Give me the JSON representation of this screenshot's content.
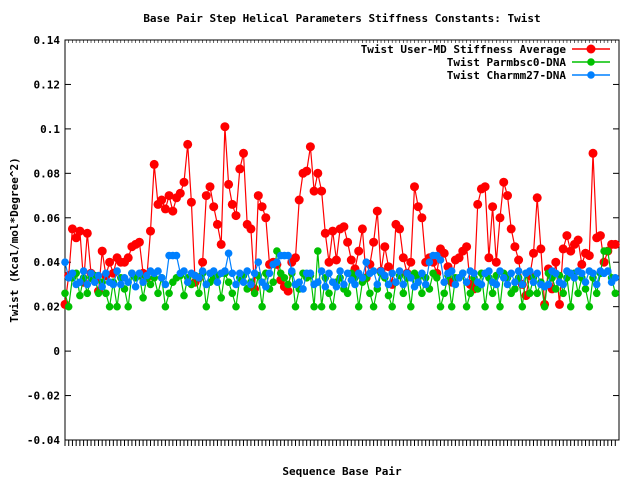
{
  "chart_data": {
    "type": "line",
    "title": "Base Pair Step Helical Parameters Stiffness Constants: Twist",
    "xlabel": "Sequence Base Pair",
    "ylabel": "Twist (Kcal/mol*Degree^2)",
    "ylim": [
      -0.04,
      0.14
    ],
    "yticks": [
      -0.04,
      -0.02,
      0,
      0.02,
      0.04,
      0.06,
      0.08,
      0.1,
      0.12,
      0.14
    ],
    "yticklabels": [
      "-0.04",
      "-0.02",
      "0",
      "0.02",
      "0.04",
      "0.06",
      "0.08",
      "0.1",
      "0.12",
      "0.14"
    ],
    "xlim": [
      0,
      149
    ],
    "grid": false,
    "legend_position": "top-right",
    "series": [
      {
        "name": "Twist User-MD Stiffness Average",
        "color": "#ff0000",
        "values": [
          0.021,
          0.034,
          0.055,
          0.051,
          0.054,
          0.031,
          0.053,
          0.035,
          0.032,
          0.027,
          0.045,
          0.034,
          0.04,
          0.035,
          0.042,
          0.04,
          0.04,
          0.042,
          0.047,
          0.048,
          0.049,
          0.035,
          0.033,
          0.054,
          0.084,
          0.066,
          0.068,
          0.064,
          0.07,
          0.063,
          0.069,
          0.071,
          0.076,
          0.093,
          0.067,
          0.031,
          0.033,
          0.04,
          0.07,
          0.074,
          0.065,
          0.057,
          0.048,
          0.101,
          0.075,
          0.066,
          0.061,
          0.082,
          0.089,
          0.057,
          0.055,
          0.028,
          0.07,
          0.065,
          0.06,
          0.039,
          0.04,
          0.039,
          0.032,
          0.029,
          0.027,
          0.04,
          0.042,
          0.068,
          0.08,
          0.081,
          0.092,
          0.072,
          0.08,
          0.072,
          0.053,
          0.04,
          0.054,
          0.041,
          0.055,
          0.056,
          0.049,
          0.041,
          0.037,
          0.045,
          0.055,
          0.033,
          0.039,
          0.049,
          0.063,
          0.036,
          0.047,
          0.038,
          0.03,
          0.057,
          0.055,
          0.042,
          0.035,
          0.04,
          0.074,
          0.065,
          0.06,
          0.04,
          0.042,
          0.04,
          0.035,
          0.046,
          0.044,
          0.038,
          0.031,
          0.041,
          0.042,
          0.045,
          0.047,
          0.03,
          0.028,
          0.066,
          0.073,
          0.074,
          0.042,
          0.065,
          0.04,
          0.06,
          0.076,
          0.07,
          0.055,
          0.047,
          0.041,
          0.03,
          0.025,
          0.034,
          0.044,
          0.069,
          0.046,
          0.021,
          0.037,
          0.028,
          0.04,
          0.021,
          0.046,
          0.052,
          0.045,
          0.048,
          0.05,
          0.039,
          0.044,
          0.043,
          0.089,
          0.051,
          0.052,
          0.04,
          0.045,
          0.048,
          0.048
        ]
      },
      {
        "name": "Twist Parmbsc0-DNA",
        "color": "#00c000",
        "values": [
          0.026,
          0.02,
          0.033,
          0.035,
          0.025,
          0.033,
          0.026,
          0.033,
          0.034,
          0.026,
          0.031,
          0.026,
          0.02,
          0.031,
          0.02,
          0.033,
          0.028,
          0.02,
          0.035,
          0.033,
          0.034,
          0.024,
          0.033,
          0.03,
          0.033,
          0.026,
          0.033,
          0.02,
          0.026,
          0.031,
          0.033,
          0.034,
          0.025,
          0.033,
          0.03,
          0.034,
          0.026,
          0.035,
          0.02,
          0.031,
          0.033,
          0.034,
          0.024,
          0.035,
          0.031,
          0.026,
          0.02,
          0.033,
          0.034,
          0.028,
          0.031,
          0.026,
          0.034,
          0.02,
          0.035,
          0.028,
          0.031,
          0.045,
          0.035,
          0.033,
          0.03,
          0.035,
          0.02,
          0.028,
          0.035,
          0.033,
          0.034,
          0.02,
          0.045,
          0.02,
          0.033,
          0.026,
          0.02,
          0.031,
          0.033,
          0.028,
          0.026,
          0.035,
          0.033,
          0.02,
          0.031,
          0.033,
          0.026,
          0.02,
          0.028,
          0.035,
          0.033,
          0.025,
          0.02,
          0.031,
          0.034,
          0.026,
          0.033,
          0.02,
          0.035,
          0.033,
          0.026,
          0.033,
          0.028,
          0.035,
          0.033,
          0.02,
          0.026,
          0.034,
          0.02,
          0.033,
          0.033,
          0.035,
          0.02,
          0.026,
          0.033,
          0.028,
          0.035,
          0.02,
          0.033,
          0.026,
          0.034,
          0.02,
          0.035,
          0.033,
          0.026,
          0.028,
          0.033,
          0.02,
          0.035,
          0.026,
          0.033,
          0.026,
          0.031,
          0.02,
          0.035,
          0.033,
          0.028,
          0.034,
          0.026,
          0.033,
          0.02,
          0.035,
          0.026,
          0.033,
          0.028,
          0.02,
          0.033,
          0.026,
          0.035,
          0.045,
          0.045,
          0.033,
          0.026
        ]
      },
      {
        "name": "Twist Charmm27-DNA",
        "color": "#0080ff",
        "values": [
          0.04,
          0.033,
          0.035,
          0.03,
          0.031,
          0.036,
          0.03,
          0.035,
          0.031,
          0.034,
          0.029,
          0.035,
          0.031,
          0.03,
          0.036,
          0.03,
          0.033,
          0.031,
          0.035,
          0.029,
          0.035,
          0.031,
          0.034,
          0.036,
          0.035,
          0.036,
          0.033,
          0.03,
          0.043,
          0.043,
          0.043,
          0.035,
          0.036,
          0.031,
          0.035,
          0.034,
          0.033,
          0.036,
          0.03,
          0.035,
          0.036,
          0.031,
          0.035,
          0.036,
          0.044,
          0.035,
          0.03,
          0.035,
          0.031,
          0.036,
          0.03,
          0.035,
          0.04,
          0.031,
          0.029,
          0.035,
          0.039,
          0.04,
          0.043,
          0.043,
          0.043,
          0.036,
          0.03,
          0.031,
          0.028,
          0.035,
          0.035,
          0.03,
          0.031,
          0.036,
          0.029,
          0.035,
          0.031,
          0.029,
          0.036,
          0.03,
          0.035,
          0.032,
          0.03,
          0.035,
          0.033,
          0.04,
          0.035,
          0.036,
          0.03,
          0.036,
          0.034,
          0.03,
          0.035,
          0.031,
          0.036,
          0.03,
          0.035,
          0.033,
          0.029,
          0.031,
          0.035,
          0.03,
          0.04,
          0.043,
          0.043,
          0.041,
          0.031,
          0.035,
          0.036,
          0.03,
          0.033,
          0.035,
          0.031,
          0.036,
          0.035,
          0.031,
          0.03,
          0.035,
          0.036,
          0.031,
          0.03,
          0.036,
          0.033,
          0.03,
          0.035,
          0.031,
          0.036,
          0.03,
          0.035,
          0.036,
          0.031,
          0.035,
          0.03,
          0.029,
          0.03,
          0.036,
          0.035,
          0.031,
          0.03,
          0.036,
          0.035,
          0.033,
          0.036,
          0.035,
          0.031,
          0.036,
          0.035,
          0.03,
          0.036,
          0.035,
          0.036,
          0.031,
          0.033
        ]
      }
    ]
  }
}
